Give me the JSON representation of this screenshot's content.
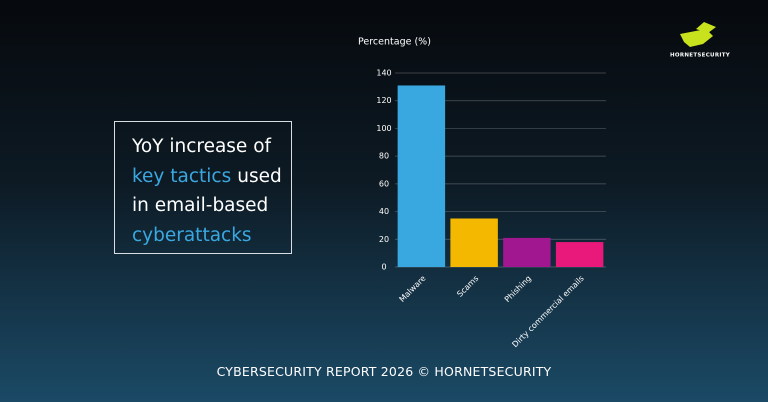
{
  "headline": {
    "lines": [
      [
        {
          "text": "YoY increase of"
        }
      ],
      [
        {
          "text": "key tactics",
          "highlight": true
        },
        {
          "text": "used"
        }
      ],
      [
        {
          "text": "in email-based"
        }
      ],
      [
        {
          "text": "cyberattacks",
          "highlight": true
        }
      ]
    ],
    "highlight_color": "#3aa8e0"
  },
  "logo": "HORNETSECURITY",
  "footer": "CYBERSECURITY REPORT 2026 © HORNETSECURITY",
  "chart_data": {
    "type": "bar",
    "y_label": "Percentage (%)",
    "categories": [
      "Malware",
      "Scams",
      "Phishing",
      "Dirty commercial emails"
    ],
    "values": [
      131,
      35,
      21,
      18
    ],
    "colors": [
      "#3aa8e0",
      "#f5b800",
      "#a0178f",
      "#e8197a"
    ],
    "ylim": [
      0,
      140
    ],
    "yticks": [
      0,
      20,
      40,
      60,
      80,
      100,
      120,
      140
    ],
    "grid": true
  }
}
